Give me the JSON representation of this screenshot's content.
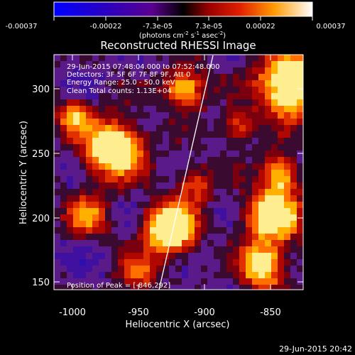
{
  "colorbar": {
    "ticks": [
      "-0.00037",
      "-0.00022",
      "-7.3e-05",
      "7.3e-05",
      "0.00022",
      "0.00037"
    ],
    "unit_main": "(photons cm",
    "unit_exp1": "-2",
    "unit_s": " s",
    "unit_exp2": "-1",
    "unit_asec": " asec",
    "unit_exp3": "-2",
    "unit_close": ")"
  },
  "title": "Reconstructed RHESSI Image",
  "info": {
    "line1": "29-Jun-2015 07:48:04.000 to 07:52:48.000",
    "line2": "Detectors: 3F 5F 6F 7F 8F 9F, Att 0",
    "line3": "Energy Range: 25.0 - 50.0 keV",
    "line4": "Clean    Total counts: 1.13E+04"
  },
  "peak_label": "Position of Peak = [-846,292]",
  "xaxis": {
    "label": "Heliocentric X (arcsec)",
    "ticks": [
      "-1000",
      "-950",
      "-900",
      "-850"
    ]
  },
  "yaxis": {
    "label": "Heliocentric Y (arcsec)",
    "ticks": [
      "150",
      "200",
      "250",
      "300"
    ]
  },
  "footer_timestamp": "29-Jun-2015 20:42",
  "colors": {
    "limb_line": "#ffffff",
    "background": "#000000"
  }
}
